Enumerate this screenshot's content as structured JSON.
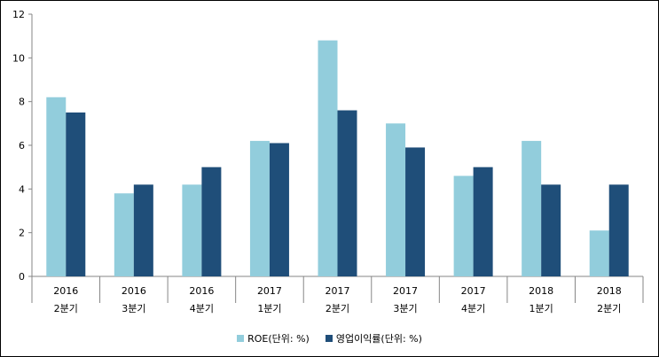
{
  "chart_data": {
    "type": "bar",
    "categories": [
      [
        "2016",
        "2분기"
      ],
      [
        "2016",
        "3분기"
      ],
      [
        "2016",
        "4분기"
      ],
      [
        "2017",
        "1분기"
      ],
      [
        "2017",
        "2분기"
      ],
      [
        "2017",
        "3분기"
      ],
      [
        "2017",
        "4분기"
      ],
      [
        "2018",
        "1분기"
      ],
      [
        "2018",
        "2분기"
      ]
    ],
    "series": [
      {
        "name": "ROE(단위: %)",
        "color": "#92CDDC",
        "values": [
          8.2,
          3.8,
          4.2,
          6.2,
          10.8,
          7.0,
          4.6,
          6.2,
          2.1
        ]
      },
      {
        "name": "영업이익률(단위: %)",
        "color": "#1F4E79",
        "values": [
          7.5,
          4.2,
          5.0,
          6.1,
          7.6,
          5.9,
          5.0,
          4.2,
          4.2
        ]
      }
    ],
    "ylim": [
      0,
      12
    ],
    "yticks": [
      0,
      2,
      4,
      6,
      8,
      10,
      12
    ],
    "grid": false,
    "legend": "bottom"
  }
}
